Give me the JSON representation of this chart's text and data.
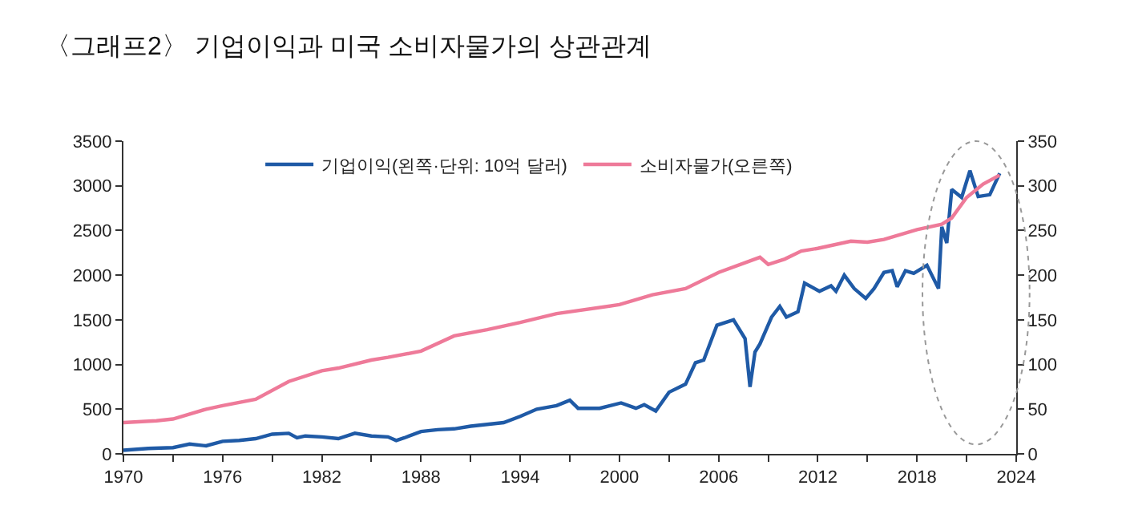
{
  "chart_data": {
    "type": "line",
    "title": "〈그래프2〉 기업이익과 미국 소비자물가의 상관관계",
    "series": [
      {
        "name": "기업이익(왼쪽·단위: 10억 달러)",
        "color": "#1f5aa6",
        "x": [
          1970,
          1971.5,
          1973,
          1974,
          1975,
          1976,
          1977,
          1978,
          1979,
          1980,
          1980.5,
          1981,
          1982,
          1983,
          1984,
          1985,
          1986,
          1986.5,
          1987,
          1988,
          1989,
          1990,
          1991,
          1992,
          1993,
          1994,
          1995,
          1996.2,
          1997.0,
          1997.5,
          1998.8,
          2000.1,
          2001.0,
          2001.5,
          2002.2,
          2003.0,
          2004.0,
          2004.6,
          2005.1,
          2005.9,
          2006.9,
          2007.6,
          2007.9,
          2008.2,
          2008.5,
          2009.2,
          2009.7,
          2010.1,
          2010.8,
          2011.2,
          2012.1,
          2012.8,
          2013.1,
          2013.6,
          2014.2,
          2014.9,
          2015.4,
          2016.0,
          2016.5,
          2016.8,
          2017.3,
          2017.8,
          2018.6,
          2019.3,
          2019.5,
          2019.8,
          2020.1,
          2020.7,
          2021.2,
          2021.7,
          2022.4,
          2023.0
        ],
        "values": [
          40,
          60,
          70,
          110,
          90,
          140,
          150,
          170,
          220,
          230,
          180,
          200,
          190,
          170,
          230,
          200,
          190,
          150,
          180,
          250,
          270,
          280,
          310,
          330,
          350,
          420,
          500,
          540,
          600,
          510,
          510,
          570,
          510,
          550,
          480,
          690,
          780,
          1020,
          1050,
          1440,
          1500,
          1290,
          750,
          1140,
          1230,
          1530,
          1650,
          1530,
          1590,
          1910,
          1820,
          1880,
          1820,
          2000,
          1850,
          1740,
          1850,
          2030,
          2050,
          1870,
          2050,
          2020,
          2110,
          1850,
          2540,
          2360,
          2960,
          2870,
          3170,
          2880,
          2900,
          3140
        ]
      },
      {
        "name": "소비자물가(오른쪽)",
        "color": "#ee7a99",
        "axis": "y2",
        "x": [
          1970,
          1972,
          1973,
          1975,
          1976,
          1978,
          1980,
          1982,
          1983,
          1985,
          1986,
          1988,
          1990,
          1992,
          1994,
          1996.2,
          2000,
          2002,
          2004,
          2006,
          2008.5,
          2009,
          2010,
          2011,
          2012,
          2014,
          2015,
          2016,
          2018,
          2019.5,
          2020.1,
          2021,
          2022,
          2023
        ],
        "values": [
          35,
          37,
          39,
          50,
          54,
          61,
          81,
          93,
          96,
          105,
          108,
          115,
          132,
          139,
          147,
          157,
          167,
          178,
          185,
          203,
          220,
          212,
          218,
          227,
          230,
          238,
          237,
          240,
          251,
          257,
          264,
          287,
          302,
          312
        ]
      }
    ],
    "xlim": [
      1970,
      2024
    ],
    "xticks": [
      1970,
      {
        "value": 1973,
        "label": null
      },
      1976,
      {
        "value": 1979,
        "label": null
      },
      1982,
      {
        "value": 1985,
        "label": null
      },
      1988,
      {
        "value": 1991,
        "label": null
      },
      1994,
      {
        "value": 1997,
        "label": null
      },
      2000,
      {
        "value": 2003,
        "label": null
      },
      2006,
      {
        "value": 2009,
        "label": null
      },
      2012,
      {
        "value": 2015,
        "label": null
      },
      2018,
      {
        "value": 2021,
        "label": null
      },
      2024
    ],
    "ylim": [
      0,
      3500
    ],
    "yticks": [
      0,
      500,
      1000,
      1500,
      2000,
      2500,
      3000,
      3500
    ],
    "y2lim": [
      0,
      350
    ],
    "y2ticks": [
      0,
      50,
      100,
      150,
      200,
      250,
      300,
      350
    ],
    "legend": "top",
    "marker": "none",
    "line_style": "solid"
  }
}
